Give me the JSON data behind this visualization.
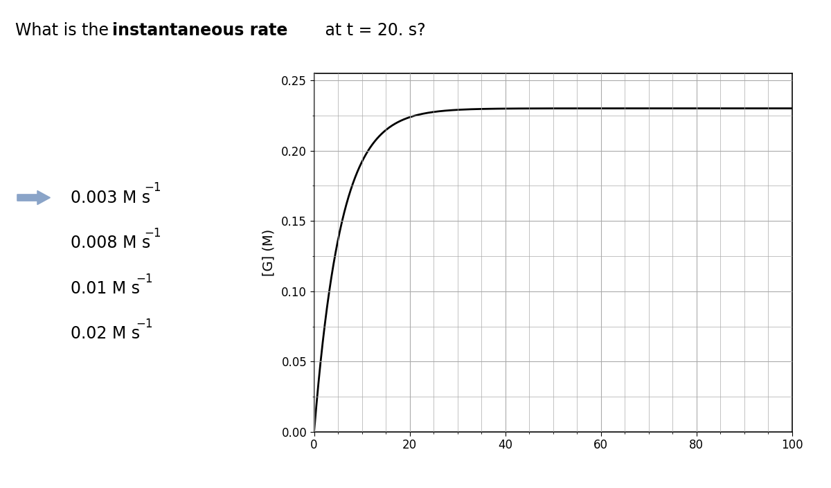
{
  "title_normal1": "What is the ",
  "title_bold": "instantaneous rate",
  "title_normal2": " at t = 20. s?",
  "ylabel": "[G] (M)",
  "xlim": [
    0,
    100
  ],
  "ylim": [
    0.0,
    0.25
  ],
  "yticks": [
    0.0,
    0.05,
    0.1,
    0.15,
    0.2,
    0.25
  ],
  "xticks": [
    0,
    20,
    40,
    60,
    80,
    100
  ],
  "curve_color": "#000000",
  "curve_lw": 2.0,
  "grid_color": "#aaaaaa",
  "background_color": "#ffffff",
  "answer_choices": [
    "0.003 M s",
    "0.008 M s",
    "0.01 M s",
    "0.02 M s"
  ],
  "arrow_color": "#8aa4c8",
  "selected_index": 0,
  "curve_asymptote": 0.23,
  "curve_k": 0.18,
  "title_fontsize": 17,
  "choice_fontsize": 17,
  "sup_fontsize": 12
}
